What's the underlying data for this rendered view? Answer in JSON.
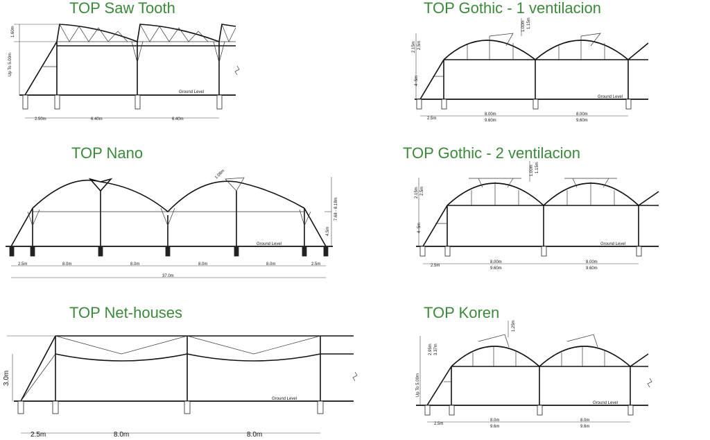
{
  "titles": {
    "saw_tooth": "TOP Saw Tooth",
    "gothic_1": "TOP Gothic - 1 ventilacion",
    "nano": "TOP Nano",
    "gothic_2": "TOP Gothic - 2 ventilacion",
    "net_houses": "TOP Net-houses",
    "koren": "TOP Koren"
  },
  "colors": {
    "title": "#3a8a3a",
    "lines": "#111111"
  },
  "saw_tooth": {
    "height_label": "Up To 5.00m",
    "truss_label": "1.60m",
    "ground": "Ground Level",
    "spans": [
      "2.50m",
      "6.40m",
      "6.40m"
    ]
  },
  "gothic_1": {
    "left_heights": [
      "2.15m",
      "2.5m"
    ],
    "post_height": "4~5m",
    "vent_heights": [
      "1.00m",
      "1.15m"
    ],
    "ground": "Ground Level",
    "edge": "2.5m",
    "spans": [
      [
        "8.00m",
        "9.60m"
      ],
      [
        "8.00m",
        "9.60m"
      ]
    ]
  },
  "nano": {
    "vent": "1.08m",
    "height_total": "7.68 - 8.18m",
    "post_height": "4.5m",
    "ground": "Ground  Level",
    "spans": [
      "2.5m",
      "8.0m",
      "8.0m",
      "8.0m",
      "8.0m",
      "2.5m"
    ],
    "total": "37.0m"
  },
  "gothic_2": {
    "left_heights": [
      "2.15m",
      "2.5m"
    ],
    "post_height": "4~5m",
    "vent_heights": [
      "1.00m",
      "1.15m"
    ],
    "ground": "Ground Level",
    "edge": "2.5m",
    "spans": [
      [
        "8.00m",
        "9.60m"
      ],
      [
        "8.00m",
        "9.60m"
      ]
    ]
  },
  "net_houses": {
    "height": "3.0m",
    "ground": "Ground Level",
    "spans": [
      "2.5m",
      "8.0m",
      "8.0m"
    ]
  },
  "koren": {
    "vent": "1.25m",
    "left_heights": [
      "2.95m",
      "3.37m"
    ],
    "post_height": "Up To 5.00m",
    "ground": "Ground Level",
    "edge": "2.5m",
    "spans": [
      [
        "8.0m",
        "9.6m"
      ],
      [
        "8.0m",
        "9.6m"
      ]
    ]
  }
}
